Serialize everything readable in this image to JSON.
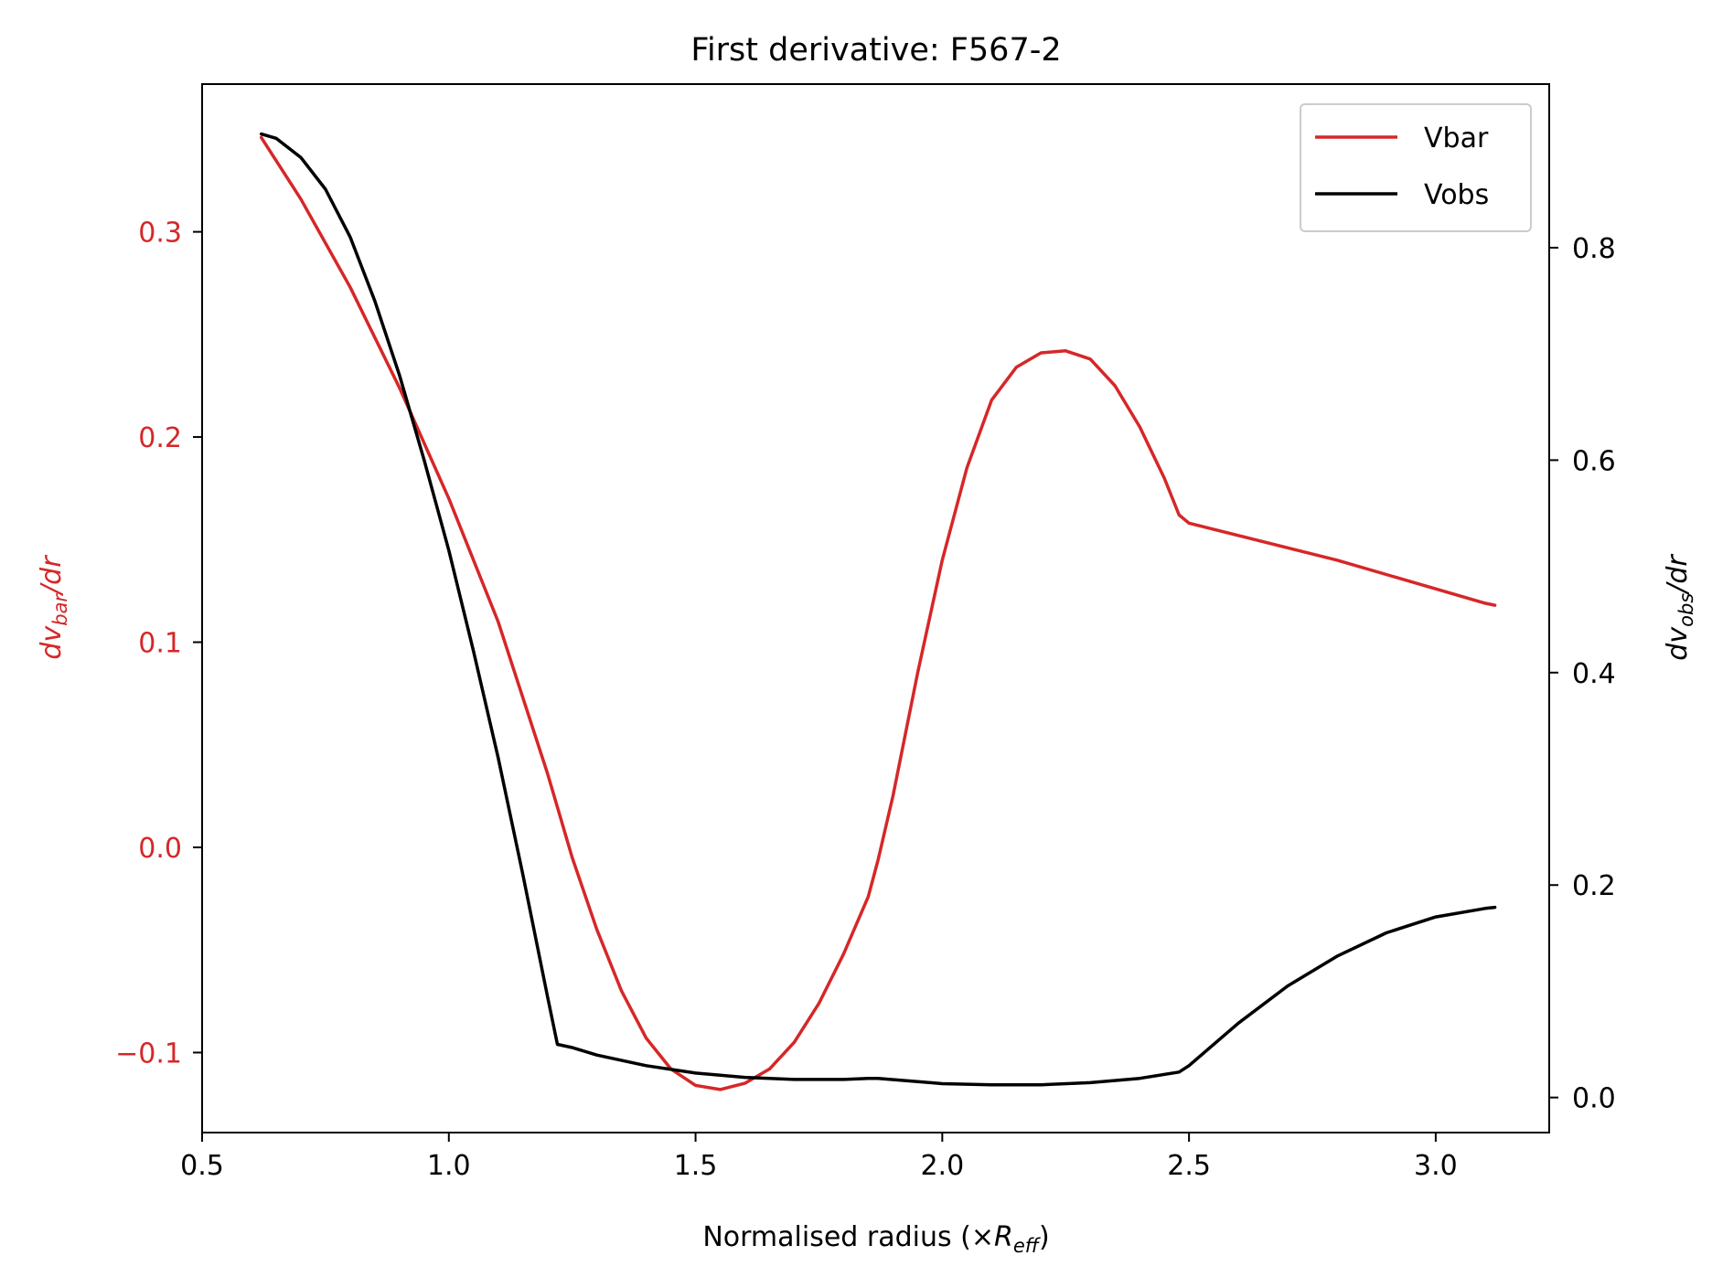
{
  "chart_data": {
    "type": "line",
    "title": "First derivative: F567-2",
    "xlabel": {
      "main": "Normalised radius (×",
      "italic": "R",
      "sub": "eff",
      "close": ")"
    },
    "ylabel_left": {
      "prefix": "dv",
      "sub": "bar",
      "suffix": "/dr",
      "color": "#d62728"
    },
    "ylabel_right": {
      "prefix": "dv",
      "sub": "obs",
      "suffix": "/dr",
      "color": "#000000"
    },
    "xlim": [
      0.5,
      3.23
    ],
    "ylim_left": [
      -0.139,
      0.372
    ],
    "ylim_right": [
      -0.033,
      0.954
    ],
    "xticks": [
      {
        "value": 0.5,
        "label": "0.5"
      },
      {
        "value": 1.0,
        "label": "1.0"
      },
      {
        "value": 1.5,
        "label": "1.5"
      },
      {
        "value": 2.0,
        "label": "2.0"
      },
      {
        "value": 2.5,
        "label": "2.5"
      },
      {
        "value": 3.0,
        "label": "3.0"
      }
    ],
    "yticks_left": [
      {
        "value": -0.1,
        "label": "−0.1"
      },
      {
        "value": 0.0,
        "label": "0.0"
      },
      {
        "value": 0.1,
        "label": "0.1"
      },
      {
        "value": 0.2,
        "label": "0.2"
      },
      {
        "value": 0.3,
        "label": "0.3"
      }
    ],
    "yticks_right": [
      {
        "value": 0.0,
        "label": "0.0"
      },
      {
        "value": 0.2,
        "label": "0.2"
      },
      {
        "value": 0.4,
        "label": "0.4"
      },
      {
        "value": 0.6,
        "label": "0.6"
      },
      {
        "value": 0.8,
        "label": "0.8"
      }
    ],
    "legend_position": "top-right",
    "series": [
      {
        "name": "Vbar",
        "axis": "left",
        "color": "#d62728",
        "points": [
          [
            0.62,
            0.346
          ],
          [
            0.7,
            0.316
          ],
          [
            0.8,
            0.273
          ],
          [
            0.9,
            0.224
          ],
          [
            1.0,
            0.17
          ],
          [
            1.1,
            0.11
          ],
          [
            1.2,
            0.036
          ],
          [
            1.25,
            -0.005
          ],
          [
            1.3,
            -0.04
          ],
          [
            1.35,
            -0.07
          ],
          [
            1.4,
            -0.093
          ],
          [
            1.45,
            -0.108
          ],
          [
            1.5,
            -0.116
          ],
          [
            1.55,
            -0.118
          ],
          [
            1.6,
            -0.115
          ],
          [
            1.65,
            -0.108
          ],
          [
            1.7,
            -0.095
          ],
          [
            1.75,
            -0.076
          ],
          [
            1.8,
            -0.052
          ],
          [
            1.85,
            -0.024
          ],
          [
            1.87,
            -0.006
          ],
          [
            1.9,
            0.025
          ],
          [
            1.95,
            0.085
          ],
          [
            2.0,
            0.14
          ],
          [
            2.05,
            0.185
          ],
          [
            2.1,
            0.218
          ],
          [
            2.15,
            0.234
          ],
          [
            2.2,
            0.241
          ],
          [
            2.25,
            0.242
          ],
          [
            2.3,
            0.238
          ],
          [
            2.35,
            0.225
          ],
          [
            2.4,
            0.205
          ],
          [
            2.45,
            0.18
          ],
          [
            2.48,
            0.162
          ],
          [
            2.5,
            0.158
          ],
          [
            2.6,
            0.152
          ],
          [
            2.7,
            0.146
          ],
          [
            2.8,
            0.14
          ],
          [
            2.9,
            0.133
          ],
          [
            3.0,
            0.126
          ],
          [
            3.1,
            0.119
          ],
          [
            3.12,
            0.118
          ]
        ]
      },
      {
        "name": "Vobs",
        "axis": "right",
        "color": "#000000",
        "points": [
          [
            0.62,
            0.907
          ],
          [
            0.65,
            0.903
          ],
          [
            0.7,
            0.885
          ],
          [
            0.75,
            0.855
          ],
          [
            0.8,
            0.81
          ],
          [
            0.85,
            0.75
          ],
          [
            0.9,
            0.68
          ],
          [
            0.95,
            0.6
          ],
          [
            1.0,
            0.515
          ],
          [
            1.05,
            0.42
          ],
          [
            1.1,
            0.32
          ],
          [
            1.15,
            0.21
          ],
          [
            1.2,
            0.095
          ],
          [
            1.22,
            0.05
          ],
          [
            1.25,
            0.047
          ],
          [
            1.3,
            0.04
          ],
          [
            1.4,
            0.03
          ],
          [
            1.5,
            0.023
          ],
          [
            1.6,
            0.019
          ],
          [
            1.7,
            0.017
          ],
          [
            1.8,
            0.017
          ],
          [
            1.85,
            0.018
          ],
          [
            1.87,
            0.018
          ],
          [
            1.95,
            0.015
          ],
          [
            2.0,
            0.013
          ],
          [
            2.1,
            0.012
          ],
          [
            2.2,
            0.012
          ],
          [
            2.3,
            0.014
          ],
          [
            2.4,
            0.018
          ],
          [
            2.48,
            0.024
          ],
          [
            2.5,
            0.03
          ],
          [
            2.6,
            0.07
          ],
          [
            2.7,
            0.105
          ],
          [
            2.8,
            0.133
          ],
          [
            2.9,
            0.155
          ],
          [
            3.0,
            0.17
          ],
          [
            3.1,
            0.178
          ],
          [
            3.12,
            0.179
          ]
        ]
      }
    ]
  }
}
